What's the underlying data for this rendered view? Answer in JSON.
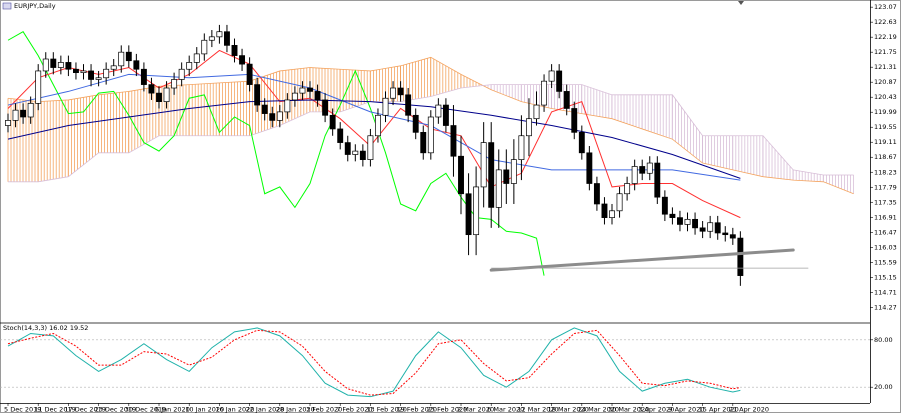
{
  "chart_data": [
    {
      "type": "candlestick",
      "title": "EURJPY,Daily",
      "xlim": [
        -1.06,
        114.17
      ],
      "ylim": [
        113.84,
        123.28
      ],
      "yticks": [
        123.07,
        122.63,
        122.19,
        121.75,
        121.31,
        120.87,
        120.43,
        119.99,
        119.55,
        119.11,
        118.67,
        118.23,
        117.79,
        117.35,
        116.91,
        116.47,
        116.03,
        115.59,
        115.15,
        114.71,
        114.27
      ],
      "xticks": [
        {
          "value": 0,
          "label": "5 Dec 2019"
        },
        {
          "value": 4,
          "label": "11 Dec 2019"
        },
        {
          "value": 8,
          "label": "17 Dec 2019"
        },
        {
          "value": 12,
          "label": "23 Dec 2019"
        },
        {
          "value": 16,
          "label": "30 Dec 2019"
        },
        {
          "value": 20,
          "label": "6 Jan 2020"
        },
        {
          "value": 24,
          "label": "10 Jan 2020"
        },
        {
          "value": 28,
          "label": "16 Jan 2020"
        },
        {
          "value": 32,
          "label": "22 Jan 2020"
        },
        {
          "value": 36,
          "label": "28 Jan 2020"
        },
        {
          "value": 40,
          "label": "3 Feb 2020"
        },
        {
          "value": 44,
          "label": "7 Feb 2020"
        },
        {
          "value": 48,
          "label": "13 Feb 2020"
        },
        {
          "value": 52,
          "label": "19 Feb 2020"
        },
        {
          "value": 56,
          "label": "25 Feb 2020"
        },
        {
          "value": 60,
          "label": "2 Mar 2020"
        },
        {
          "value": 64,
          "label": "6 Mar 2020"
        },
        {
          "value": 68,
          "label": "12 Mar 2020"
        },
        {
          "value": 72,
          "label": "18 Mar 2020"
        },
        {
          "value": 76,
          "label": "24 Mar 2020"
        },
        {
          "value": 80,
          "label": "30 Mar 2020"
        },
        {
          "value": 84,
          "label": "3 Apr 2020"
        },
        {
          "value": 88,
          "label": "9 Apr 2020"
        },
        {
          "value": 92,
          "label": "15 Apr 2020"
        },
        {
          "value": 96,
          "label": "21 Apr 2020"
        }
      ],
      "up_color": "#ffffff",
      "down_color": "#000000",
      "open": [
        119.6,
        119.75,
        120.05,
        119.85,
        120.25,
        121.2,
        121.55,
        121.3,
        121.45,
        121.25,
        121.15,
        121.2,
        120.95,
        121.0,
        121.25,
        121.35,
        121.75,
        121.5,
        121.25,
        120.8,
        120.55,
        120.3,
        120.7,
        120.95,
        121.25,
        121.45,
        121.7,
        122.1,
        122.2,
        122.35,
        121.95,
        121.65,
        121.4,
        120.8,
        120.2,
        119.95,
        119.75,
        120.0,
        120.35,
        120.55,
        120.7,
        120.6,
        120.35,
        119.9,
        119.5,
        119.1,
        118.75,
        118.85,
        118.6,
        119.3,
        119.9,
        120.4,
        120.7,
        120.5,
        119.9,
        119.4,
        118.8,
        119.85,
        120.2,
        119.6,
        118.7,
        117.6,
        116.4,
        117.8,
        119.1,
        117.2,
        118.3,
        117.9,
        118.6,
        119.3,
        119.8,
        120.2,
        120.9,
        121.2,
        120.6,
        120.1,
        119.4,
        118.8,
        117.9,
        117.3,
        116.9,
        117.1,
        117.6,
        117.9,
        118.4,
        118.2,
        118.5,
        117.5,
        117.0,
        116.9,
        116.7,
        116.85,
        116.6,
        116.5,
        116.75,
        116.45,
        116.4,
        116.3
      ],
      "high": [
        119.95,
        120.25,
        120.25,
        120.45,
        121.4,
        121.75,
        121.75,
        121.65,
        121.65,
        121.45,
        121.4,
        121.4,
        121.2,
        121.45,
        121.55,
        121.95,
        121.95,
        121.7,
        121.45,
        121.0,
        120.75,
        120.9,
        121.15,
        121.45,
        121.65,
        121.9,
        122.3,
        122.4,
        122.55,
        122.55,
        122.15,
        121.85,
        121.6,
        121.0,
        120.4,
        120.15,
        120.2,
        120.55,
        120.75,
        120.9,
        120.9,
        120.8,
        120.55,
        120.1,
        119.7,
        119.3,
        119.05,
        119.05,
        119.5,
        120.1,
        120.6,
        120.9,
        120.9,
        120.7,
        120.1,
        119.6,
        120.05,
        120.4,
        120.4,
        120.2,
        119.3,
        118.2,
        118.4,
        119.7,
        119.7,
        118.9,
        118.9,
        119.2,
        119.9,
        120.4,
        120.6,
        121.1,
        121.4,
        121.4,
        120.8,
        120.3,
        119.6,
        119.0,
        118.1,
        117.5,
        117.3,
        117.8,
        118.1,
        118.6,
        118.6,
        118.7,
        118.7,
        117.7,
        117.2,
        117.1,
        117.05,
        117.05,
        116.8,
        116.95,
        116.95,
        116.65,
        116.6,
        116.5
      ],
      "low": [
        119.4,
        119.55,
        119.65,
        119.65,
        120.05,
        121.0,
        121.1,
        121.1,
        121.05,
        120.95,
        120.95,
        120.75,
        120.75,
        120.8,
        121.05,
        121.15,
        121.3,
        121.05,
        120.6,
        120.35,
        120.1,
        120.1,
        120.5,
        120.75,
        121.05,
        121.25,
        121.5,
        121.9,
        122.0,
        121.75,
        121.45,
        121.2,
        120.6,
        120.0,
        119.75,
        119.55,
        119.55,
        119.8,
        120.15,
        120.35,
        120.4,
        120.15,
        119.7,
        119.3,
        118.9,
        118.55,
        118.55,
        118.4,
        118.4,
        119.1,
        119.7,
        120.2,
        120.3,
        119.7,
        119.2,
        118.6,
        118.6,
        119.65,
        119.4,
        118.1,
        117.0,
        115.8,
        115.8,
        117.2,
        116.6,
        116.6,
        117.3,
        117.3,
        118.0,
        118.7,
        119.6,
        120.0,
        120.7,
        120.4,
        119.9,
        119.2,
        118.6,
        117.7,
        117.1,
        116.7,
        116.7,
        116.9,
        117.4,
        117.7,
        118.0,
        118.0,
        117.3,
        116.8,
        116.7,
        116.5,
        116.5,
        116.4,
        116.3,
        116.3,
        116.25,
        116.2,
        116.1,
        114.9
      ],
      "close": [
        119.75,
        120.05,
        119.85,
        120.25,
        121.2,
        121.55,
        121.3,
        121.45,
        121.25,
        121.15,
        121.2,
        120.95,
        121.0,
        121.25,
        121.35,
        121.75,
        121.5,
        121.25,
        120.8,
        120.55,
        120.3,
        120.7,
        120.95,
        121.25,
        121.45,
        121.7,
        122.1,
        122.2,
        122.35,
        121.95,
        121.65,
        121.4,
        120.8,
        120.2,
        119.95,
        119.75,
        120.0,
        120.35,
        120.55,
        120.7,
        120.6,
        120.35,
        119.9,
        119.5,
        119.1,
        118.75,
        118.85,
        118.6,
        119.3,
        119.9,
        120.4,
        120.7,
        120.5,
        119.9,
        119.4,
        118.8,
        119.85,
        120.2,
        119.6,
        118.7,
        117.6,
        116.4,
        117.8,
        119.1,
        117.2,
        118.3,
        117.9,
        118.6,
        119.3,
        119.8,
        120.2,
        120.9,
        121.2,
        120.6,
        120.1,
        119.4,
        118.8,
        117.9,
        117.3,
        116.9,
        117.1,
        117.6,
        117.9,
        118.4,
        118.2,
        118.5,
        117.5,
        117.0,
        116.9,
        116.7,
        116.85,
        116.6,
        116.5,
        116.75,
        116.45,
        116.4,
        116.3,
        115.2
      ],
      "cloud": {
        "color_up": "#f4a460",
        "color_down": "#d8bfd8",
        "x": [
          0,
          4,
          8,
          12,
          16,
          20,
          24,
          28,
          32,
          36,
          40,
          44,
          48,
          52,
          56,
          60,
          64,
          68,
          72,
          76,
          80,
          84,
          88,
          92,
          96,
          100,
          104,
          108,
          112
        ],
        "span_a": [
          120.4,
          120.3,
          120.35,
          120.5,
          120.6,
          120.75,
          120.8,
          120.85,
          120.9,
          121.2,
          121.3,
          121.25,
          121.2,
          121.35,
          121.6,
          121.1,
          120.65,
          120.3,
          120.1,
          119.95,
          119.8,
          119.5,
          119.2,
          118.5,
          118.3,
          118.1,
          118.0,
          117.95,
          117.6
        ],
        "span_b": [
          117.95,
          117.95,
          118.1,
          118.8,
          118.8,
          119.3,
          119.3,
          119.3,
          119.3,
          119.6,
          120.0,
          120.0,
          120.3,
          120.3,
          120.45,
          120.7,
          120.8,
          120.8,
          120.8,
          120.8,
          120.5,
          120.5,
          120.5,
          119.3,
          119.3,
          119.3,
          118.3,
          118.15,
          118.15
        ]
      },
      "lines": [
        {
          "color": "#00ff00",
          "x": [
            0,
            2,
            4,
            6,
            8,
            10,
            12,
            14,
            16,
            18,
            20,
            22,
            24,
            26,
            28,
            30,
            32,
            34,
            36,
            38,
            40,
            42,
            44,
            46,
            48,
            50,
            52,
            54,
            56,
            58,
            60,
            62,
            64,
            66,
            68,
            70,
            71
          ],
          "values": [
            122.1,
            122.35,
            121.65,
            120.8,
            119.95,
            120.0,
            120.55,
            120.6,
            119.9,
            119.1,
            118.85,
            119.3,
            120.4,
            120.5,
            119.4,
            119.85,
            119.6,
            117.6,
            117.8,
            117.2,
            117.9,
            119.3,
            120.2,
            121.2,
            120.1,
            118.8,
            117.3,
            117.1,
            117.9,
            118.2,
            117.5,
            116.9,
            116.85,
            116.5,
            116.45,
            116.3,
            115.2
          ]
        },
        {
          "color": "#ff3030",
          "x": [
            0,
            4,
            8,
            12,
            16,
            20,
            24,
            28,
            32,
            36,
            40,
            44,
            48,
            52,
            56,
            60,
            64,
            68,
            72,
            76,
            80,
            84,
            88,
            92,
            97
          ],
          "values": [
            120.1,
            121.0,
            121.3,
            121.1,
            121.3,
            120.7,
            121.1,
            121.8,
            121.4,
            120.3,
            120.4,
            119.8,
            119.0,
            120.1,
            119.5,
            119.3,
            117.8,
            118.2,
            120.0,
            120.3,
            117.8,
            117.9,
            117.9,
            117.4,
            116.9
          ]
        },
        {
          "color": "#4169e1",
          "x": [
            0,
            8,
            16,
            24,
            32,
            40,
            48,
            56,
            64,
            72,
            80,
            88,
            97
          ],
          "values": [
            120.2,
            120.6,
            121.1,
            121.0,
            121.1,
            120.7,
            120.0,
            119.6,
            118.6,
            118.3,
            118.3,
            118.3,
            118.0
          ]
        },
        {
          "color": "#00008b",
          "x": [
            0,
            8,
            16,
            24,
            32,
            40,
            48,
            56,
            64,
            72,
            80,
            88,
            97
          ],
          "values": [
            119.2,
            119.6,
            119.85,
            120.1,
            120.3,
            120.35,
            120.3,
            120.15,
            119.9,
            119.6,
            119.25,
            118.75,
            118.05
          ]
        }
      ],
      "trendline": {
        "color": "#8c8c8c",
        "x": [
          64,
          104
        ],
        "values": [
          115.36,
          115.95
        ]
      },
      "level": {
        "color": "#a0a0a0",
        "x": [
          64,
          106
        ],
        "value": 115.42
      }
    },
    {
      "type": "stochastic",
      "title": "Stoch(14,3,3) 16.02 19.52",
      "xlim": [
        -1.06,
        114.17
      ],
      "ylim": [
        0,
        100
      ],
      "yticks": [
        {
          "value": 80,
          "label": "80.00"
        },
        {
          "value": 20,
          "label": "20.00"
        }
      ],
      "series": [
        {
          "color": "#20b2aa",
          "dashed": false,
          "x": [
            0,
            3,
            6,
            9,
            12,
            15,
            18,
            21,
            24,
            27,
            30,
            33,
            36,
            39,
            42,
            45,
            48,
            51,
            54,
            57,
            60,
            63,
            66,
            69,
            72,
            75,
            78,
            81,
            84,
            87,
            90,
            93,
            96,
            97
          ],
          "values": [
            72,
            88,
            85,
            60,
            40,
            55,
            75,
            55,
            40,
            70,
            90,
            95,
            85,
            60,
            25,
            10,
            8,
            15,
            60,
            90,
            70,
            35,
            20,
            40,
            80,
            95,
            85,
            40,
            15,
            25,
            30,
            20,
            14,
            16.02
          ]
        },
        {
          "color": "#ff0000",
          "dashed": true,
          "x": [
            0,
            3,
            6,
            9,
            12,
            15,
            18,
            21,
            24,
            27,
            30,
            33,
            36,
            39,
            42,
            45,
            48,
            51,
            54,
            57,
            60,
            63,
            66,
            69,
            72,
            75,
            78,
            81,
            84,
            87,
            90,
            93,
            96,
            97
          ],
          "values": [
            75,
            82,
            88,
            72,
            48,
            48,
            65,
            62,
            48,
            58,
            80,
            92,
            90,
            72,
            40,
            18,
            10,
            12,
            38,
            75,
            80,
            50,
            28,
            32,
            62,
            88,
            92,
            60,
            25,
            22,
            28,
            25,
            18,
            19.52
          ]
        }
      ]
    }
  ]
}
